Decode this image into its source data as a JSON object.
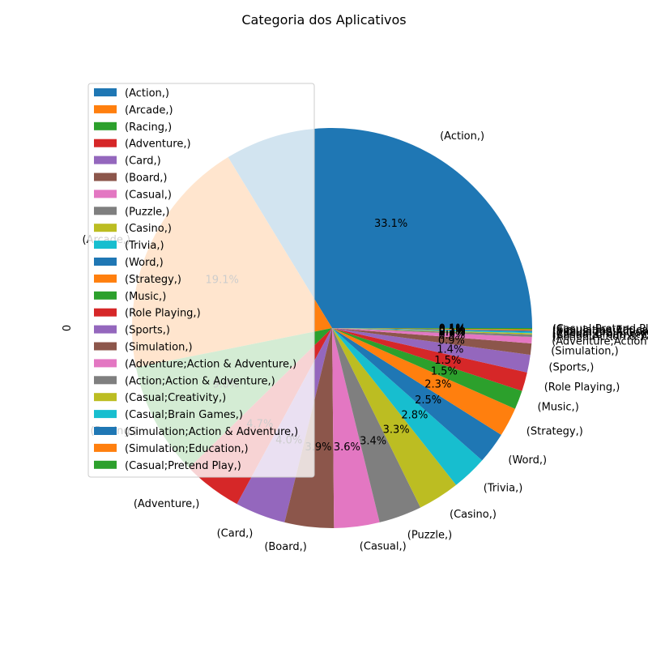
{
  "chart_data": {
    "type": "pie",
    "title": "Categoria dos Aplicativos",
    "ylabel": "0",
    "start_angle_deg": 0,
    "counterclock": true,
    "legend_position": "upper-left",
    "categories": [
      "(Action,)",
      "(Arcade,)",
      "(Racing,)",
      "(Adventure,)",
      "(Card,)",
      "(Board,)",
      "(Casual,)",
      "(Puzzle,)",
      "(Casino,)",
      "(Trivia,)",
      "(Word,)",
      "(Strategy,)",
      "(Music,)",
      "(Role Playing,)",
      "(Sports,)",
      "(Simulation,)",
      "(Adventure;Action & Adventure,)",
      "(Action;Action & Adventure,)",
      "(Casual;Creativity,)",
      "(Casual;Brain Games,)",
      "(Simulation;Action & Adventure,)",
      "(Simulation;Education,)",
      "(Casual;Pretend Play,)"
    ],
    "values": [
      33.1,
      19.1,
      9.0,
      4.7,
      4.0,
      3.9,
      3.6,
      3.4,
      3.3,
      2.8,
      2.5,
      2.3,
      1.5,
      1.5,
      1.4,
      0.9,
      0.5,
      0.2,
      0.1,
      0.1,
      0.1,
      0.1,
      0.1
    ],
    "pct_labels": [
      "33.1%",
      "19.1%",
      "9.0%",
      "4.7%",
      "4.0%",
      "3.9%",
      "3.6%",
      "3.4%",
      "3.3%",
      "2.8%",
      "2.5%",
      "2.3%",
      "1.5%",
      "1.5%",
      "1.4%",
      "0.9%",
      "0.5%",
      "0.2%",
      "0.1%",
      "0.1%",
      "0.1%",
      "0.1%",
      "0.1%"
    ],
    "colors": [
      "#1f77b4",
      "#ff7f0e",
      "#2ca02c",
      "#d62728",
      "#9467bd",
      "#8c564b",
      "#e377c2",
      "#7f7f7f",
      "#bcbd22",
      "#17becf",
      "#1f77b4",
      "#ff7f0e",
      "#2ca02c",
      "#d62728",
      "#9467bd",
      "#8c564b",
      "#e377c2",
      "#7f7f7f",
      "#bcbd22",
      "#17becf",
      "#1f77b4",
      "#ff7f0e",
      "#2ca02c"
    ]
  }
}
